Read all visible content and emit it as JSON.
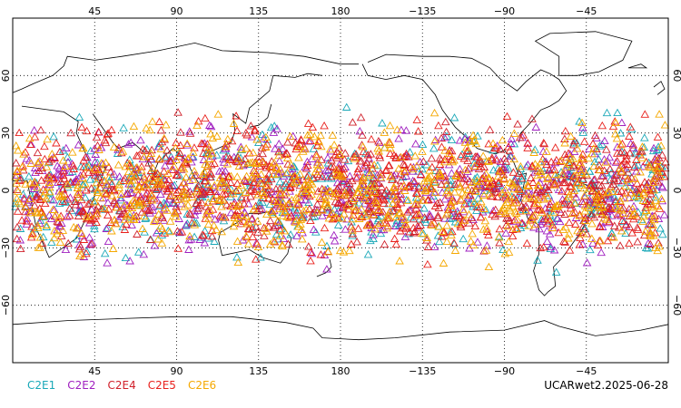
{
  "chart_data": {
    "type": "scatter",
    "title": "",
    "projection": "cylindrical-equidistant",
    "lon_range": [
      0,
      360
    ],
    "lat_range": [
      -90,
      90
    ],
    "grid": "dotted",
    "marker": "triangle-outline",
    "x_ticks": [
      "45",
      "90",
      "135",
      "180",
      "−135",
      "−90",
      "−45"
    ],
    "x_tick_lons": [
      45,
      90,
      135,
      180,
      225,
      270,
      315
    ],
    "y_ticks": [
      "60",
      "30",
      "0",
      "−30",
      "−60"
    ],
    "y_tick_lats": [
      60,
      30,
      0,
      -30,
      -60
    ],
    "occultation_lat_band": [
      -45,
      45
    ],
    "series": [
      {
        "name": "C2E1",
        "color": "#1aa8b8",
        "count": 480
      },
      {
        "name": "C2E2",
        "color": "#a020c0",
        "count": 560
      },
      {
        "name": "C2E4",
        "color": "#d0202a",
        "count": 560
      },
      {
        "name": "C2E5",
        "color": "#e8201c",
        "count": 560
      },
      {
        "name": "C2E6",
        "color": "#f5a800",
        "count": 760
      }
    ]
  },
  "footer": {
    "stamp": "UCARwet2.2025-06-28"
  }
}
